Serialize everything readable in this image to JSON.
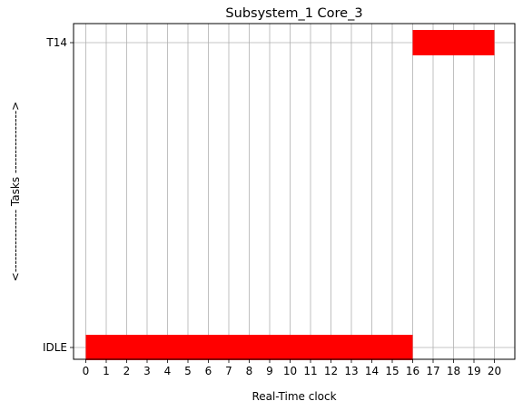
{
  "chart_data": {
    "type": "gantt",
    "title": "Subsystem_1 Core_3",
    "xlabel": "Real-Time clock",
    "ylabel": "<---------------- Tasks ---------------->",
    "xlim": [
      -0.6,
      21
    ],
    "x_ticks": [
      0,
      1,
      2,
      3,
      4,
      5,
      6,
      7,
      8,
      9,
      10,
      11,
      12,
      13,
      14,
      15,
      16,
      17,
      18,
      19,
      20
    ],
    "y_categories": [
      "IDLE",
      "T14"
    ],
    "grid": true,
    "bar_color": "#ff0000",
    "bars": [
      {
        "task": "IDLE",
        "start": 0,
        "end": 16
      },
      {
        "task": "T14",
        "start": 16,
        "end": 20
      }
    ]
  }
}
